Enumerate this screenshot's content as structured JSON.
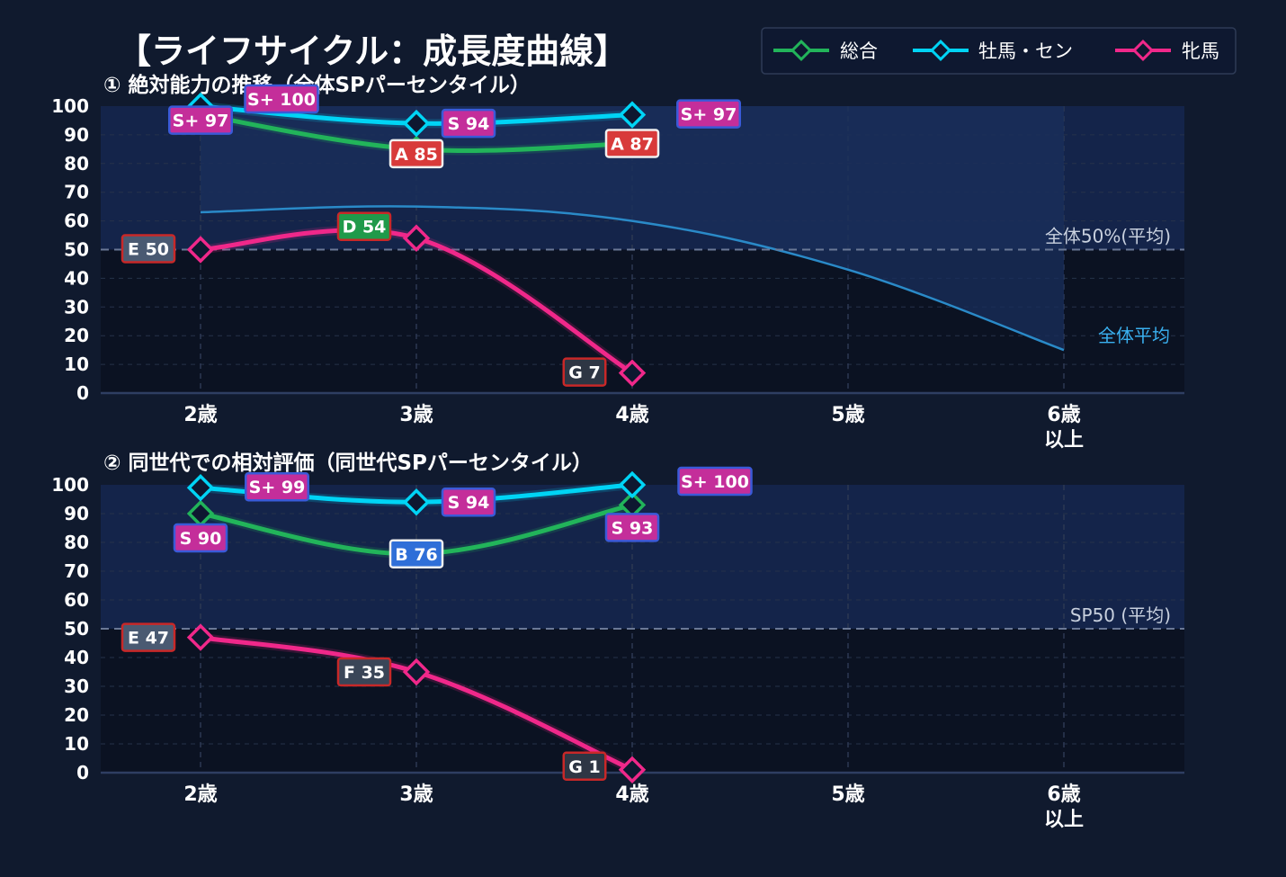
{
  "title": "【ライフサイクル：成長度曲線】",
  "colors": {
    "background": "#101a2e",
    "plot_upper": "#14244a",
    "plot_lower": "#0b1222",
    "sogo": "#22b45a",
    "bokuba": "#00d4f5",
    "hinba": "#f0288a",
    "avg_line": "#2a8ac8"
  },
  "legend": {
    "items": [
      {
        "key": "sogo",
        "label": "総合",
        "color": "#22b45a"
      },
      {
        "key": "bokuba",
        "label": "牡馬・セン",
        "color": "#00d4f5"
      },
      {
        "key": "hinba",
        "label": "牝馬",
        "color": "#f0288a"
      }
    ]
  },
  "chart_data": [
    {
      "type": "line",
      "title": "① 絶対能力の推移（全体SPパーセンタイル）",
      "x_categories": [
        "2歳",
        "3歳",
        "4歳",
        "5歳",
        "6歳\n以上"
      ],
      "ylim": [
        0,
        100
      ],
      "yticks": [
        "0",
        "10",
        "20",
        "30",
        "40",
        "50",
        "60",
        "70",
        "80",
        "90",
        "100"
      ],
      "reference_line": {
        "y": 50,
        "label": "全体50%(平均)"
      },
      "average_curve": {
        "label": "全体平均",
        "values": [
          63,
          65,
          60,
          43,
          15
        ]
      },
      "series": [
        {
          "name": "総合",
          "key": "sogo",
          "values": [
            97,
            85,
            87,
            null,
            null
          ],
          "tags": [
            {
              "text": "S+ 97",
              "tier": "S+"
            },
            {
              "text": "A 85",
              "tier": "A"
            },
            {
              "text": "A 87",
              "tier": "A"
            }
          ]
        },
        {
          "name": "牡馬・セン",
          "key": "bokuba",
          "values": [
            100,
            94,
            97,
            null,
            null
          ],
          "tags": [
            {
              "text": "S+ 100",
              "tier": "S+"
            },
            {
              "text": "S 94",
              "tier": "S"
            },
            {
              "text": "S+ 97",
              "tier": "S+"
            }
          ]
        },
        {
          "name": "牝馬",
          "key": "hinba",
          "values": [
            50,
            54,
            7,
            null,
            null
          ],
          "tags": [
            {
              "text": "E 50",
              "tier": "E"
            },
            {
              "text": "D 54",
              "tier": "D"
            },
            {
              "text": "G 7",
              "tier": "G"
            }
          ]
        }
      ]
    },
    {
      "type": "line",
      "title": "② 同世代での相対評価（同世代SPパーセンタイル）",
      "x_categories": [
        "2歳",
        "3歳",
        "4歳",
        "5歳",
        "6歳\n以上"
      ],
      "ylim": [
        0,
        100
      ],
      "yticks": [
        "0",
        "10",
        "20",
        "30",
        "40",
        "50",
        "60",
        "70",
        "80",
        "90",
        "100"
      ],
      "reference_line": {
        "y": 50,
        "label": "SP50 (平均)"
      },
      "series": [
        {
          "name": "総合",
          "key": "sogo",
          "values": [
            90,
            76,
            93,
            null,
            null
          ],
          "tags": [
            {
              "text": "S 90",
              "tier": "S"
            },
            {
              "text": "B 76",
              "tier": "B"
            },
            {
              "text": "S 93",
              "tier": "S"
            }
          ]
        },
        {
          "name": "牡馬・セン",
          "key": "bokuba",
          "values": [
            99,
            94,
            100,
            null,
            null
          ],
          "tags": [
            {
              "text": "S+ 99",
              "tier": "S+"
            },
            {
              "text": "S 94",
              "tier": "S"
            },
            {
              "text": "S+ 100",
              "tier": "S+"
            }
          ]
        },
        {
          "name": "牝馬",
          "key": "hinba",
          "values": [
            47,
            35,
            1,
            null,
            null
          ],
          "tags": [
            {
              "text": "E 47",
              "tier": "E"
            },
            {
              "text": "F 35",
              "tier": "F"
            },
            {
              "text": "G 1",
              "tier": "G"
            }
          ]
        }
      ]
    }
  ],
  "tier_colors": {
    "S+": {
      "fill": "#c42e9a",
      "border": "#3a5ad8"
    },
    "S": {
      "fill": "#c42e9a",
      "border": "#3a5ad8"
    },
    "A": {
      "fill": "#d83a3a",
      "border": "#f0f0f0"
    },
    "B": {
      "fill": "#2f6fd8",
      "border": "#f0f0f0"
    },
    "D": {
      "fill": "#1f9a4a",
      "border": "#c82828"
    },
    "E": {
      "fill": "#4a5a72",
      "border": "#c82828"
    },
    "F": {
      "fill": "#3a4658",
      "border": "#c82828"
    },
    "G": {
      "fill": "#2e3644",
      "border": "#c82828"
    }
  }
}
